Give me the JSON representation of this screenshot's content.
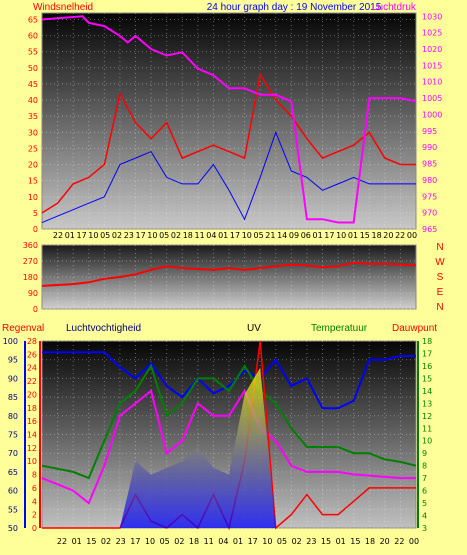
{
  "chart_data": [
    {
      "type": "line",
      "title": "24 hour graph day : 19 November 2015",
      "left_axis_label": "Windsnelheid",
      "right_axis_label": "Luchtdruk",
      "y_left_ticks": [
        0,
        5,
        10,
        15,
        20,
        25,
        30,
        35,
        40,
        45,
        50,
        55,
        60,
        65
      ],
      "y_left_range": [
        0,
        67
      ],
      "y_right_ticks": [
        965,
        970,
        975,
        980,
        985,
        990,
        995,
        1000,
        1005,
        1010,
        1015,
        1020,
        1025,
        1030
      ],
      "y_right_range": [
        965,
        1031
      ],
      "x_tick_labels": [
        "22",
        "01",
        "17",
        "10",
        "05",
        "02",
        "23",
        "17",
        "10",
        "05",
        "02",
        "18",
        "11",
        "04",
        "01",
        "17",
        "10",
        "05",
        "21",
        "14",
        "09",
        "06",
        "01",
        "17",
        "10",
        "01",
        "15",
        "18",
        "20",
        "22",
        "00"
      ],
      "grid": true,
      "colors": {
        "gust": "#ff0000",
        "wind": "#0000ff",
        "pressure": "#ff00ff"
      },
      "series": [
        {
          "key": "gust",
          "x": [
            0,
            1,
            2,
            3,
            4,
            5,
            6,
            7,
            8,
            9,
            10,
            11,
            12,
            13,
            14,
            15,
            16,
            17,
            18,
            19,
            20,
            21,
            22,
            23,
            24
          ],
          "values": [
            5,
            8,
            14,
            16,
            20,
            42,
            33,
            28,
            33,
            22,
            24,
            26,
            24,
            22,
            48,
            40,
            35,
            28,
            22,
            24,
            26,
            30,
            22,
            20,
            20
          ]
        },
        {
          "key": "wind",
          "x": [
            0,
            1,
            2,
            3,
            4,
            5,
            6,
            7,
            8,
            9,
            10,
            11,
            12,
            13,
            14,
            15,
            16,
            17,
            18,
            19,
            20,
            21,
            22,
            23,
            24
          ],
          "values": [
            2,
            4,
            6,
            8,
            10,
            20,
            22,
            24,
            16,
            14,
            14,
            20,
            12,
            3,
            16,
            30,
            18,
            16,
            12,
            14,
            16,
            14,
            14,
            14,
            14
          ]
        },
        {
          "key": "pressure",
          "x": [
            0,
            2.6,
            3,
            4,
            5,
            5.5,
            6,
            7,
            8,
            9,
            10,
            11,
            12,
            13,
            14,
            15,
            16,
            17,
            18,
            19,
            20,
            21,
            22,
            23,
            24
          ],
          "values": [
            1029,
            1030,
            1028,
            1027,
            1024,
            1022,
            1024,
            1020,
            1018,
            1019,
            1014,
            1012,
            1008,
            1008,
            1006,
            1006,
            1004,
            968,
            968,
            967,
            967,
            1005,
            1005,
            1005,
            1004
          ]
        }
      ]
    },
    {
      "type": "line",
      "title": "",
      "y_ticks": [
        0,
        90,
        180,
        270,
        360
      ],
      "y_range": [
        0,
        360
      ],
      "right_labels": [
        "N",
        "W",
        "S",
        "E",
        "N"
      ],
      "x_tick_labels": [],
      "grid": true,
      "colors": {
        "direction": "#ff0000"
      },
      "series": [
        {
          "key": "direction",
          "x": [
            0,
            2,
            3,
            4,
            5,
            6,
            7,
            8,
            9,
            10,
            11,
            12,
            13,
            14,
            15,
            16,
            17,
            18,
            19,
            20,
            21,
            22,
            23,
            24
          ],
          "values": [
            130,
            140,
            150,
            170,
            180,
            195,
            220,
            240,
            230,
            225,
            220,
            230,
            220,
            230,
            240,
            250,
            245,
            235,
            240,
            260,
            255,
            255,
            250,
            245
          ]
        }
      ]
    },
    {
      "type": "line",
      "title": "",
      "labels": {
        "rain": "Regenval",
        "humidity": "Luchtvochtigheid",
        "uv": "UV",
        "temperature": "Temperatuur",
        "dewpoint": "Dauwpunt"
      },
      "y_rain_ticks": [
        0,
        2,
        4,
        6,
        8,
        10,
        12,
        14,
        16,
        18,
        20,
        22,
        24,
        26,
        28
      ],
      "y_humidity_ticks": [
        50,
        55,
        60,
        65,
        70,
        75,
        80,
        85,
        90,
        95,
        100
      ],
      "y_temp_ticks": [
        3,
        4,
        5,
        6,
        7,
        8,
        9,
        10,
        11,
        12,
        13,
        14,
        15,
        16,
        17,
        18
      ],
      "x_tick_labels": [
        "22",
        "01",
        "15",
        "02",
        "23",
        "17",
        "10",
        "05",
        "02",
        "18",
        "11",
        "04",
        "01",
        "17",
        "10",
        "05",
        "02",
        "23",
        "15",
        "01",
        "15",
        "18",
        "20",
        "22",
        "00"
      ],
      "grid": true,
      "colors": {
        "humidity": "#0000ff",
        "temperature": "#008000",
        "dewpoint": "#ff00ff",
        "rain": "#ff0000",
        "uv": "#ffff00"
      },
      "series": [
        {
          "key": "humidity",
          "x": [
            0,
            4,
            5,
            6,
            7,
            8,
            9,
            10,
            11,
            12,
            13,
            14,
            15,
            16,
            17,
            18,
            19,
            20,
            21,
            22,
            23,
            24
          ],
          "values": [
            97,
            97,
            93,
            90,
            94,
            88,
            85,
            90,
            86,
            88,
            92,
            90,
            95,
            88,
            90,
            82,
            82,
            84,
            95,
            95,
            96,
            96
          ]
        },
        {
          "key": "temperature",
          "x": [
            0,
            2,
            3,
            4,
            5,
            6,
            7,
            8,
            9,
            10,
            11,
            12,
            13,
            14,
            15,
            16,
            17,
            18,
            19,
            20,
            21,
            22,
            23,
            24
          ],
          "values": [
            8,
            7.5,
            7,
            10,
            13,
            14,
            16,
            12,
            13,
            15,
            15,
            14,
            16,
            14,
            13,
            11,
            9.5,
            9.5,
            9.5,
            9,
            9,
            8.5,
            8.3,
            8
          ]
        },
        {
          "key": "dewpoint",
          "x": [
            0,
            2,
            3,
            4,
            5,
            6,
            7,
            8,
            9,
            10,
            11,
            12,
            13,
            14,
            15,
            16,
            17,
            18,
            19,
            20,
            21,
            22,
            23,
            24
          ],
          "values": [
            7,
            6,
            5,
            8,
            12,
            13,
            14,
            9,
            10,
            13,
            12,
            12,
            14,
            11,
            10,
            8,
            7.5,
            7.5,
            7.5,
            7.3,
            7.2,
            7.1,
            7,
            7
          ]
        },
        {
          "key": "rain",
          "x": [
            0,
            5,
            6,
            7,
            8,
            9,
            10,
            11,
            12,
            13,
            14,
            15,
            16,
            17,
            18,
            19,
            20,
            21,
            22,
            23,
            24
          ],
          "values": [
            0,
            0,
            5,
            1,
            0,
            2,
            0,
            5,
            0,
            10,
            28,
            0,
            2,
            5,
            2,
            2,
            4,
            6,
            6,
            6,
            6
          ]
        },
        {
          "key": "uv",
          "x": [
            0,
            5,
            6,
            7,
            8,
            9,
            10,
            11,
            12,
            13,
            14,
            15,
            16,
            24
          ],
          "values": [
            0,
            0,
            10,
            8,
            9,
            10,
            12,
            9,
            8,
            20,
            24,
            0,
            0,
            0
          ]
        }
      ]
    }
  ]
}
